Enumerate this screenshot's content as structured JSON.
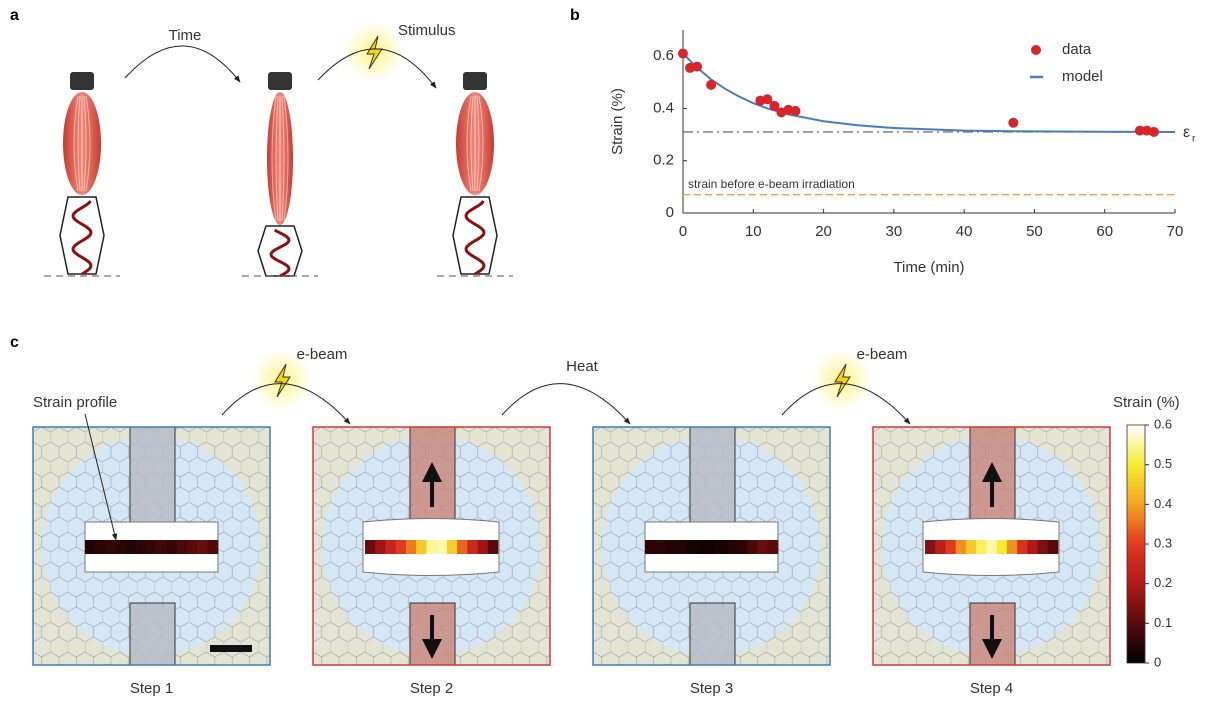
{
  "panel_labels": {
    "a": "a",
    "b": "b",
    "c": "c"
  },
  "panel_a": {
    "time_label": "Time",
    "stimulus_label": "Stimulus"
  },
  "chart_data": {
    "type": "scatter",
    "xlabel": "Time (min)",
    "ylabel": "Strain (%)",
    "xlim": [
      0,
      70
    ],
    "ylim": [
      0,
      0.7
    ],
    "xticks": [
      0,
      10,
      20,
      30,
      40,
      50,
      60,
      70
    ],
    "yticks": [
      0,
      0.2,
      0.4,
      0.6
    ],
    "series": [
      {
        "name": "data",
        "color": "#d9252a",
        "type": "scatter",
        "x": [
          0,
          1,
          2,
          4,
          11,
          12,
          13,
          14,
          15,
          16,
          47,
          65,
          66,
          67
        ],
        "values": [
          0.61,
          0.555,
          0.56,
          0.49,
          0.43,
          0.435,
          0.41,
          0.385,
          0.395,
          0.39,
          0.345,
          0.315,
          0.315,
          0.31
        ]
      },
      {
        "name": "model",
        "color": "#4a7cc4",
        "type": "line",
        "x": [
          0,
          2,
          4,
          6,
          8,
          10,
          12,
          15,
          20,
          25,
          30,
          40,
          50,
          60,
          70
        ],
        "values": [
          0.61,
          0.556,
          0.511,
          0.475,
          0.445,
          0.42,
          0.4,
          0.377,
          0.351,
          0.335,
          0.325,
          0.315,
          0.312,
          0.311,
          0.31
        ]
      }
    ],
    "reference_lines": [
      {
        "value": 0.31,
        "label": "ε",
        "subscript": "r",
        "color": "#777777",
        "style": "dashdot"
      },
      {
        "value": 0.07,
        "label": "strain before e-beam irradiation",
        "color": "#f0a040",
        "style": "dashed"
      }
    ]
  },
  "panel_c": {
    "annotation": "Strain profile",
    "transitions": [
      "e-beam",
      "Heat",
      "e-beam"
    ],
    "steps": [
      {
        "label": "Step 1",
        "border_color": "#3b7cc4",
        "stretched": false,
        "strain_profile": [
          0.04,
          0.05,
          0.06,
          0.05,
          0.04,
          0.05,
          0.06,
          0.07,
          0.06,
          0.08,
          0.1,
          0.12,
          0.09
        ]
      },
      {
        "label": "Step 2",
        "border_color": "#d23a3a",
        "stretched": true,
        "strain_profile": [
          0.12,
          0.18,
          0.24,
          0.3,
          0.36,
          0.45,
          0.55,
          0.56,
          0.46,
          0.34,
          0.25,
          0.18,
          0.1
        ]
      },
      {
        "label": "Step 3",
        "border_color": "#3b7cc4",
        "stretched": false,
        "strain_profile": [
          0.05,
          0.05,
          0.04,
          0.04,
          0.03,
          0.02,
          0.02,
          0.03,
          0.04,
          0.05,
          0.08,
          0.12,
          0.1
        ]
      },
      {
        "label": "Step 4",
        "border_color": "#d23a3a",
        "stretched": true,
        "strain_profile": [
          0.15,
          0.22,
          0.3,
          0.38,
          0.45,
          0.52,
          0.56,
          0.5,
          0.38,
          0.28,
          0.2,
          0.14,
          0.1
        ]
      }
    ],
    "colorbar": {
      "title": "Strain (%)",
      "lim": [
        0,
        0.6
      ],
      "ticks": [
        0,
        0.1,
        0.2,
        0.3,
        0.4,
        0.5,
        0.6
      ]
    }
  }
}
